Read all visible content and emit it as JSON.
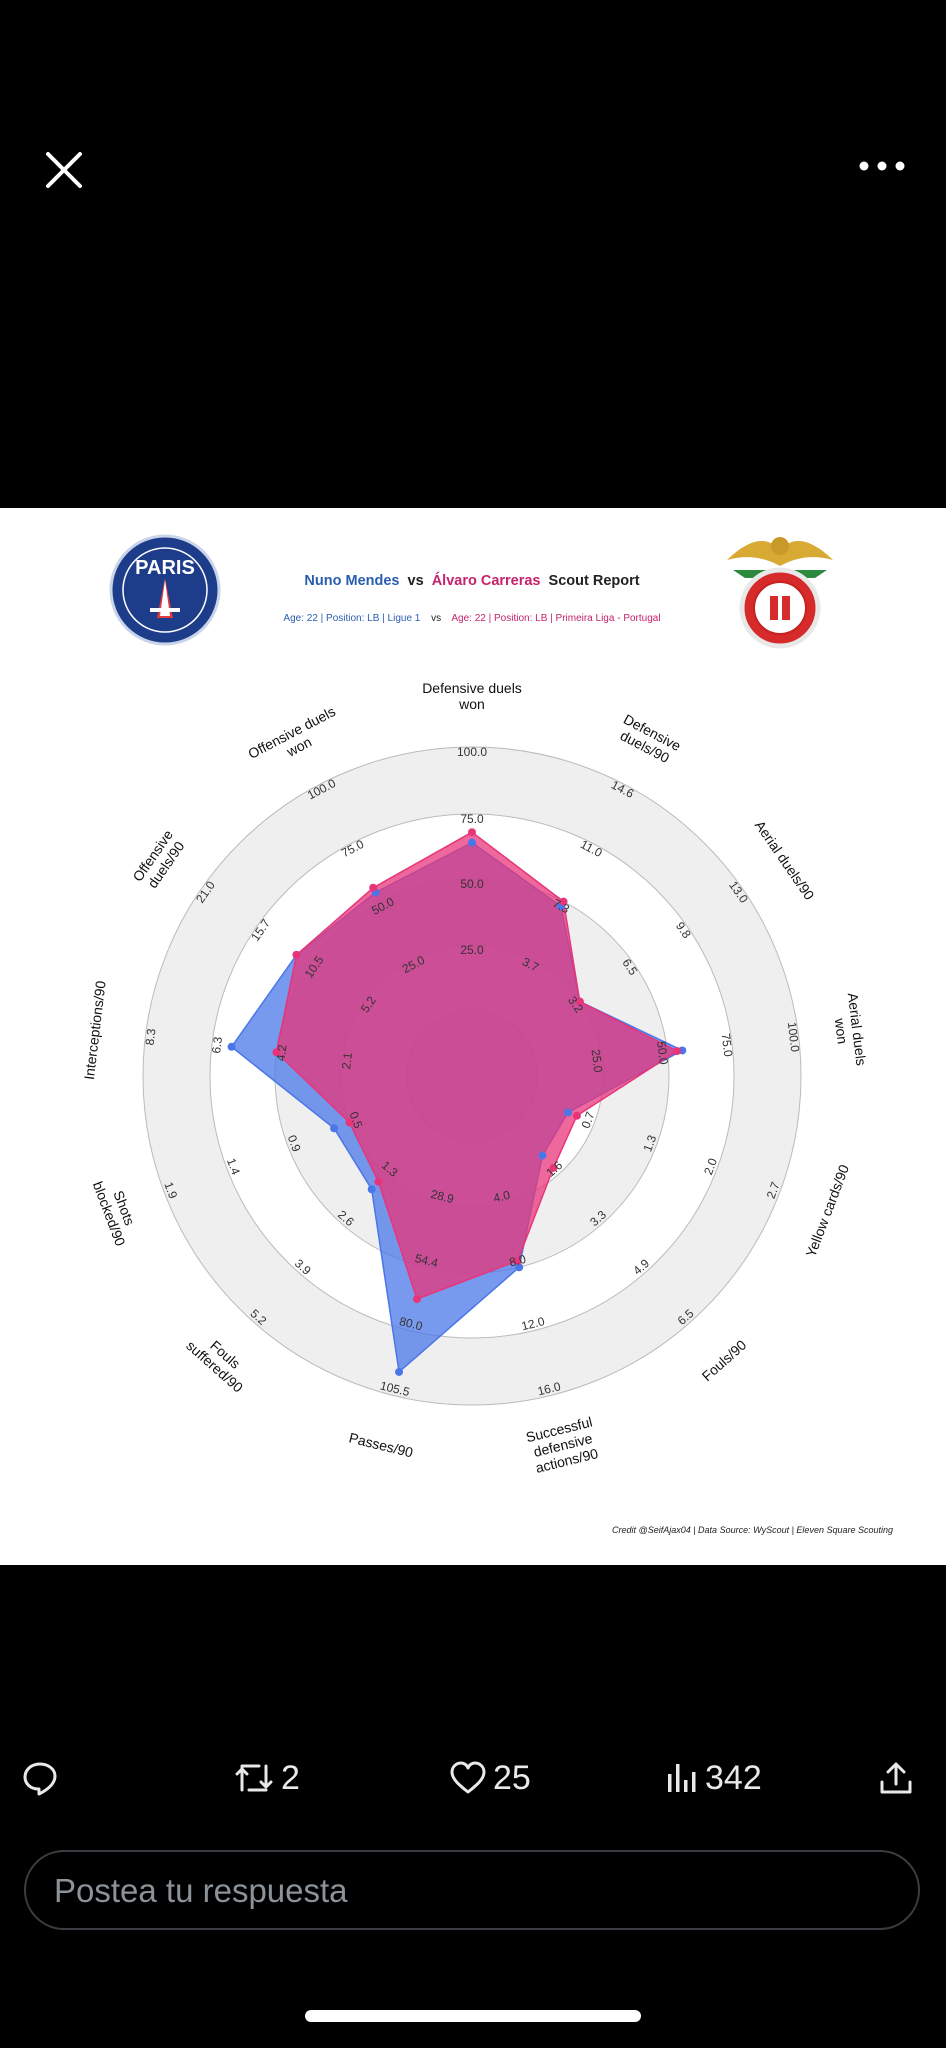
{
  "chart_data": {
    "type": "radar",
    "title_player1": "Nuno Mendes",
    "title_vs": "vs",
    "title_player2": "Álvaro Carreras",
    "title_suffix": "Scout Report",
    "subtitle_player1": "Age: 22 | Position: LB | Ligue 1",
    "subtitle_vs": "vs",
    "subtitle_player2": "Age: 22 | Position: LB | Primeira Liga - Portugal",
    "credit": "Credit @SeifAjax04 | Data Source: WyScout | Eleven Square Scouting",
    "player1_color": "#4a77e8",
    "player2_color": "#e8357a",
    "overlap_color": "#b04aa6",
    "ring_fill": "#efefef",
    "axes": [
      {
        "label": [
          "Defensive duels",
          "won"
        ],
        "ticks": [
          "25.0",
          "50.0",
          "75.0",
          "100.0"
        ]
      },
      {
        "label": [
          "Defensive",
          "duels/90"
        ],
        "ticks": [
          "3.7",
          "7.3",
          "11.0",
          "14.6"
        ]
      },
      {
        "label": [
          "Aerial duels/90"
        ],
        "ticks": [
          "3.2",
          "6.5",
          "9.8",
          "13.0"
        ]
      },
      {
        "label": [
          "Aerial duels",
          "won"
        ],
        "ticks": [
          "25.0",
          "50.0",
          "75.0",
          "100.0"
        ]
      },
      {
        "label": [
          "Yellow cards/90"
        ],
        "ticks": [
          "0.7",
          "1.3",
          "2.0",
          "2.7"
        ]
      },
      {
        "label": [
          "Fouls/90"
        ],
        "ticks": [
          "1.6",
          "3.3",
          "4.9",
          "6.5"
        ]
      },
      {
        "label": [
          "Successful",
          "defensive",
          "actions/90"
        ],
        "ticks": [
          "4.0",
          "8.0",
          "12.0",
          "16.0"
        ]
      },
      {
        "label": [
          "Passes/90"
        ],
        "ticks": [
          "28.9",
          "54.4",
          "80.0",
          "105.5"
        ]
      },
      {
        "label": [
          "Fouls",
          "suffered/90"
        ],
        "ticks": [
          "1.3",
          "2.6",
          "3.9",
          "5.2"
        ]
      },
      {
        "label": [
          "Shots",
          "blocked/90"
        ],
        "ticks": [
          "0.5",
          "0.9",
          "1.4",
          "1.9"
        ]
      },
      {
        "label": [
          "Interceptions/90"
        ],
        "ticks": [
          "2.1",
          "4.2",
          "6.3",
          "8.3"
        ]
      },
      {
        "label": [
          "Offensive",
          "duels/90"
        ],
        "ticks": [
          "5.2",
          "10.5",
          "15.7",
          "21.0"
        ]
      },
      {
        "label": [
          "Offensive duels",
          "won"
        ],
        "ticks": [
          "25.0",
          "50.0",
          "75.0",
          "100.0"
        ]
      }
    ],
    "series": [
      {
        "name": "Nuno Mendes",
        "values": [
          64,
          7.0,
          3.2,
          55.7,
          0.4,
          1.0,
          8.0,
          96.3,
          1.7,
          0.6,
          5.66,
          11.8,
          54
        ]
      },
      {
        "name": "Álvaro Carreras",
        "values": [
          68,
          7.3,
          3.2,
          53.7,
          0.5,
          1.4,
          7.6,
          67.3,
          1.5,
          0.5,
          4.2,
          11.8,
          56
        ]
      }
    ]
  },
  "footer": {
    "retweets": "2",
    "likes": "25",
    "views": "342",
    "reply_placeholder": "Postea tu respuesta"
  },
  "colors": {
    "background": "#000000",
    "icon": "#e7e9ea",
    "reply_border": "#3a3d41",
    "placeholder": "#8b9298"
  }
}
